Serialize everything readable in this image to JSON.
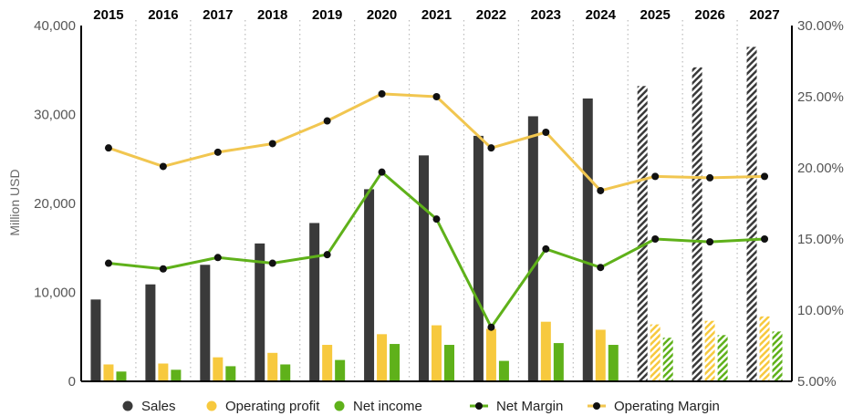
{
  "chart_data": {
    "type": "bar-line-combo",
    "categories": [
      "2015",
      "2016",
      "2017",
      "2018",
      "2019",
      "2020",
      "2021",
      "2022",
      "2023",
      "2024",
      "2025",
      "2026",
      "2027"
    ],
    "forecast_from": "2025",
    "ylabel": "Million USD",
    "ylim": [
      0,
      40000
    ],
    "yticks": [
      "0",
      "10,000",
      "20,000",
      "30,000",
      "40,000"
    ],
    "y2lim": [
      5,
      30
    ],
    "y2ticks": [
      "5.00%",
      "10.00%",
      "15.00%",
      "20.00%",
      "25.00%",
      "30.00%"
    ],
    "colors": {
      "sales": "#3a3a3a",
      "operating_profit": "#f7c93e",
      "net_income": "#5fb11a",
      "net_margin": "#5fb11a",
      "operating_margin": "#f1c650",
      "marker": "#111111",
      "grid": "#bbbbbb",
      "axis": "#000000"
    },
    "series": [
      {
        "key": "sales",
        "name": "Sales",
        "kind": "bar",
        "axis": "left",
        "values": [
          9200,
          10900,
          13100,
          15500,
          17800,
          21600,
          25400,
          27600,
          29800,
          31800,
          33200,
          35300,
          37600
        ]
      },
      {
        "key": "operating_profit",
        "name": "Operating profit",
        "kind": "bar",
        "axis": "left",
        "values": [
          1900,
          2000,
          2700,
          3200,
          4100,
          5300,
          6300,
          5900,
          6700,
          5800,
          6400,
          6800,
          7300
        ]
      },
      {
        "key": "net_income",
        "name": "Net income",
        "kind": "bar",
        "axis": "left",
        "values": [
          1100,
          1300,
          1700,
          1900,
          2400,
          4200,
          4100,
          2300,
          4300,
          4100,
          4900,
          5200,
          5600
        ]
      },
      {
        "key": "net_margin",
        "name": "Net Margin",
        "kind": "line",
        "axis": "right",
        "values": [
          13.3,
          12.9,
          13.7,
          13.3,
          13.9,
          19.7,
          16.4,
          8.8,
          14.3,
          13.0,
          15.0,
          14.8,
          15.0
        ]
      },
      {
        "key": "operating_margin",
        "name": "Operating Margin",
        "kind": "line",
        "axis": "right",
        "values": [
          21.4,
          20.1,
          21.1,
          21.7,
          23.3,
          25.2,
          25.0,
          21.4,
          22.5,
          18.4,
          19.4,
          19.3,
          19.4
        ]
      }
    ]
  }
}
